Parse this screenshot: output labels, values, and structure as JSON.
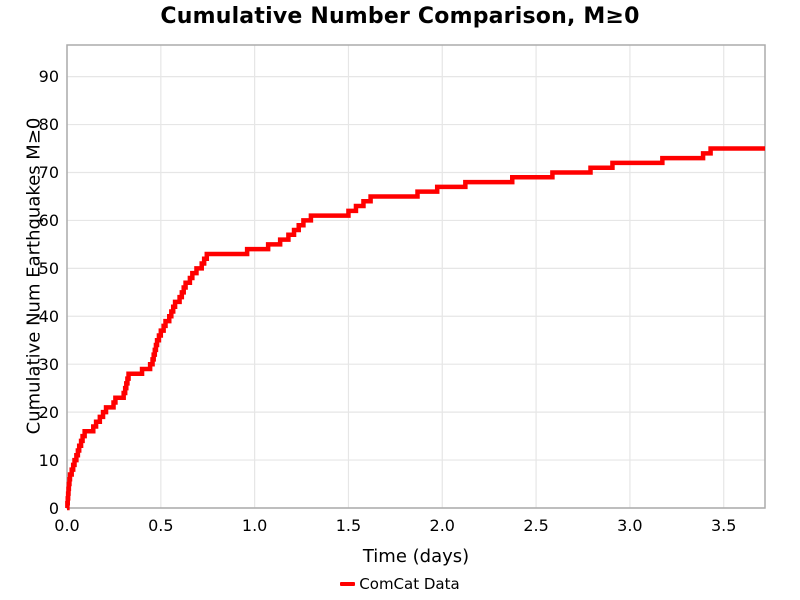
{
  "chart_data": {
    "type": "line",
    "subtype": "cumulative-step",
    "title": "Cumulative Number Comparison, M≥0",
    "xlabel": "Time (days)",
    "ylabel": "Cumulative Num Earthquakes M≥0",
    "grid": true,
    "legend_position": "bottom-center",
    "xlim": [
      0,
      3.72
    ],
    "ylim": [
      0,
      96.6
    ],
    "xtick_values": [
      0.0,
      0.5,
      1.0,
      1.5,
      2.0,
      2.5,
      3.0,
      3.5
    ],
    "xtick_labels": [
      "0.0",
      "0.5",
      "1.0",
      "1.5",
      "2.0",
      "2.5",
      "3.0",
      "3.5"
    ],
    "ytick_values": [
      0,
      10,
      20,
      30,
      40,
      50,
      60,
      70,
      80,
      90
    ],
    "ytick_labels": [
      "0",
      "10",
      "20",
      "30",
      "40",
      "50",
      "60",
      "70",
      "80",
      "90"
    ],
    "colors": {
      "line": "#ff0000",
      "grid": "#e6e6e6",
      "frame": "#ababab",
      "text": "#000000"
    },
    "series": [
      {
        "name": "ComCat Data",
        "color": "#ff0000",
        "line_width": 4.5,
        "start": [
          0,
          0
        ],
        "t_end": 3.72,
        "points": [
          [
            0.002,
            1
          ],
          [
            0.004,
            2
          ],
          [
            0.006,
            3
          ],
          [
            0.008,
            4
          ],
          [
            0.01,
            5
          ],
          [
            0.013,
            6
          ],
          [
            0.016,
            7
          ],
          [
            0.025,
            8
          ],
          [
            0.033,
            9
          ],
          [
            0.04,
            10
          ],
          [
            0.05,
            11
          ],
          [
            0.058,
            12
          ],
          [
            0.065,
            13
          ],
          [
            0.075,
            14
          ],
          [
            0.083,
            15
          ],
          [
            0.094,
            16
          ],
          [
            0.14,
            17
          ],
          [
            0.155,
            18
          ],
          [
            0.175,
            19
          ],
          [
            0.192,
            20
          ],
          [
            0.208,
            21
          ],
          [
            0.248,
            22
          ],
          [
            0.258,
            23
          ],
          [
            0.302,
            24
          ],
          [
            0.31,
            25
          ],
          [
            0.316,
            26
          ],
          [
            0.322,
            27
          ],
          [
            0.328,
            28
          ],
          [
            0.4,
            29
          ],
          [
            0.443,
            30
          ],
          [
            0.456,
            31
          ],
          [
            0.462,
            32
          ],
          [
            0.468,
            33
          ],
          [
            0.474,
            34
          ],
          [
            0.48,
            35
          ],
          [
            0.49,
            36
          ],
          [
            0.5,
            37
          ],
          [
            0.515,
            38
          ],
          [
            0.525,
            39
          ],
          [
            0.545,
            40
          ],
          [
            0.556,
            41
          ],
          [
            0.566,
            42
          ],
          [
            0.576,
            43
          ],
          [
            0.6,
            44
          ],
          [
            0.612,
            45
          ],
          [
            0.622,
            46
          ],
          [
            0.632,
            47
          ],
          [
            0.655,
            48
          ],
          [
            0.668,
            49
          ],
          [
            0.69,
            50
          ],
          [
            0.718,
            51
          ],
          [
            0.731,
            52
          ],
          [
            0.745,
            53
          ],
          [
            0.96,
            54
          ],
          [
            1.072,
            55
          ],
          [
            1.136,
            56
          ],
          [
            1.18,
            57
          ],
          [
            1.21,
            58
          ],
          [
            1.235,
            59
          ],
          [
            1.26,
            60
          ],
          [
            1.3,
            61
          ],
          [
            1.5,
            62
          ],
          [
            1.54,
            63
          ],
          [
            1.58,
            64
          ],
          [
            1.618,
            65
          ],
          [
            1.868,
            66
          ],
          [
            1.973,
            67
          ],
          [
            2.123,
            68
          ],
          [
            2.373,
            69
          ],
          [
            2.587,
            70
          ],
          [
            2.79,
            71
          ],
          [
            2.907,
            72
          ],
          [
            3.173,
            73
          ],
          [
            3.39,
            74
          ],
          [
            3.43,
            75
          ]
        ]
      }
    ]
  }
}
